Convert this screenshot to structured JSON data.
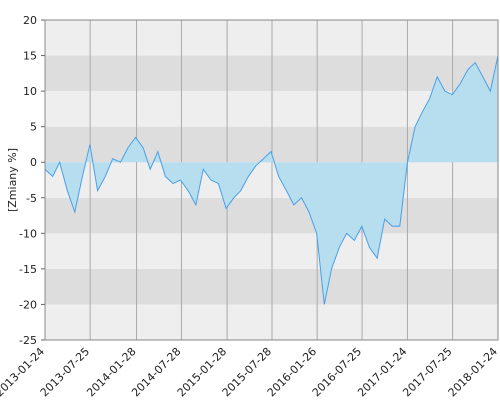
{
  "chart_data": {
    "type": "area",
    "y_label": "[Zmiany %]",
    "x": [
      "2013-01-24",
      "2013-02-24",
      "2013-03-24",
      "2013-04-24",
      "2013-05-24",
      "2013-06-24",
      "2013-07-24",
      "2013-08-24",
      "2013-09-24",
      "2013-10-24",
      "2013-11-24",
      "2013-12-24",
      "2014-01-24",
      "2014-02-24",
      "2014-03-24",
      "2014-04-24",
      "2014-05-24",
      "2014-06-24",
      "2014-07-24",
      "2014-08-24",
      "2014-09-24",
      "2014-10-24",
      "2014-11-24",
      "2014-12-24",
      "2015-01-24",
      "2015-02-24",
      "2015-03-24",
      "2015-04-24",
      "2015-05-24",
      "2015-06-24",
      "2015-07-24",
      "2015-08-24",
      "2015-09-24",
      "2015-10-24",
      "2015-11-24",
      "2015-12-24",
      "2016-01-24",
      "2016-02-24",
      "2016-03-24",
      "2016-04-24",
      "2016-05-24",
      "2016-06-24",
      "2016-07-24",
      "2016-08-24",
      "2016-09-24",
      "2016-10-24",
      "2016-11-24",
      "2016-12-24",
      "2017-01-24",
      "2017-02-24",
      "2017-03-24",
      "2017-04-24",
      "2017-05-24",
      "2017-06-24",
      "2017-07-24",
      "2017-08-24",
      "2017-09-24",
      "2017-10-24",
      "2017-11-24",
      "2017-12-24",
      "2018-01-24"
    ],
    "series": [
      {
        "color": "#4a9fe8",
        "fill": "#b6deef",
        "values": [
          -1,
          -2,
          0,
          -4,
          -7,
          -2,
          2.5,
          -4,
          -2,
          0.5,
          0,
          2,
          3.5,
          2,
          -1,
          1.5,
          -2,
          -3,
          -2.5,
          -4,
          -6,
          -1,
          -2.5,
          -3,
          -6.5,
          -5,
          -4,
          -2,
          -0.5,
          0.5,
          1.5,
          -2,
          -4,
          -6,
          -5,
          -7,
          -10,
          -20,
          -15,
          -12,
          -10,
          -11,
          -9,
          -12,
          -13.5,
          -8,
          -9,
          -9,
          0,
          5,
          7,
          9,
          12,
          10,
          9.5,
          11,
          13,
          14,
          12,
          10,
          15
        ]
      }
    ],
    "xlim": [
      "2013-01-24",
      "2018-01-24"
    ],
    "xticks": [
      "2013-01-24",
      "2013-07-25",
      "2014-01-28",
      "2014-07-28",
      "2015-01-28",
      "2015-07-28",
      "2016-01-26",
      "2016-07-25",
      "2017-01-24",
      "2017-07-25",
      "2018-01-24"
    ],
    "ylim": [
      -25,
      20
    ],
    "yticks": [
      -25,
      -20,
      -15,
      -10,
      -5,
      0,
      5,
      10,
      15,
      20
    ],
    "grid": true,
    "band_colors": [
      "#eeeeee",
      "#dddddd"
    ]
  }
}
